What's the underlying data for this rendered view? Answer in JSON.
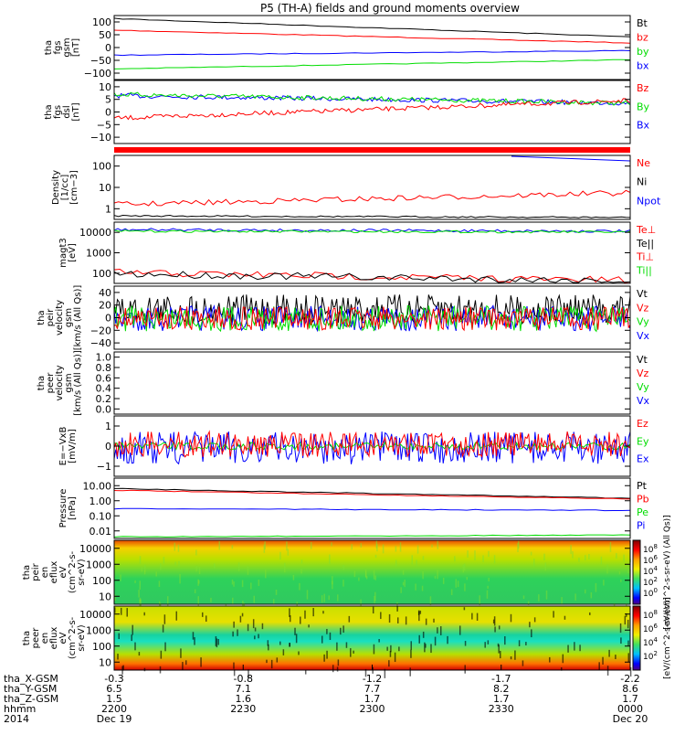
{
  "title": "P5 (TH-A) fields and ground moments overview",
  "colors": {
    "black": "#000000",
    "red": "#ff0000",
    "green": "#00dd00",
    "blue": "#0000ff"
  },
  "chart_data": [
    {
      "type": "line",
      "ylabel": [
        "tha",
        "fgs",
        "gsm",
        "[nT]"
      ],
      "yticks": [
        "100",
        "50",
        "0",
        "−50",
        "−100"
      ],
      "ylim": [
        -100,
        110
      ],
      "legend": [
        {
          "name": "Bt",
          "color": "#000000"
        },
        {
          "name": "bz",
          "color": "#ff0000"
        },
        {
          "name": "by",
          "color": "#00dd00"
        },
        {
          "name": "bx",
          "color": "#0000ff"
        }
      ],
      "series": [
        {
          "name": "Bt",
          "start": 100,
          "end": 40
        },
        {
          "name": "bz",
          "start": 62,
          "end": 20
        },
        {
          "name": "bx",
          "start": -20,
          "end": -5
        },
        {
          "name": "by",
          "start": -65,
          "end": -35
        }
      ]
    },
    {
      "type": "line",
      "ylabel": [
        "tha",
        "fgs",
        "dsl",
        "[nT]"
      ],
      "yticks": [
        "10",
        "5",
        "0",
        "−5",
        "−10"
      ],
      "ylim": [
        -15,
        10
      ],
      "legend": [
        {
          "name": "Bz",
          "color": "#ff0000"
        },
        {
          "name": "By",
          "color": "#00dd00"
        },
        {
          "name": "Bx",
          "color": "#0000ff"
        }
      ],
      "series": [
        {
          "name": "Bz",
          "start": -5,
          "end": 2
        },
        {
          "name": "By",
          "start": 4,
          "end": 1
        },
        {
          "name": "Bx",
          "start": 4,
          "end": 2
        }
      ]
    },
    {
      "type": "line",
      "ylabel": [
        "Density",
        "[1/cc]",
        "[cm−3]"
      ],
      "yticks": [
        "100",
        "10",
        "1"
      ],
      "ylim": [
        0.5,
        200
      ],
      "log": true,
      "legend": [
        {
          "name": "Ne",
          "color": "#ff0000"
        },
        {
          "name": "Ni",
          "color": "#000000"
        },
        {
          "name": "Npot",
          "color": "#0000ff"
        }
      ],
      "series": [
        {
          "name": "Ne",
          "level": 3
        },
        {
          "name": "Ni",
          "level": 0.7
        },
        {
          "name": "Npot",
          "level": 150
        }
      ]
    },
    {
      "type": "line",
      "ylabel": [
        "magt3",
        "[eV]"
      ],
      "yticks": [
        "10000",
        "1000",
        "100"
      ],
      "ylim": [
        30,
        15000
      ],
      "log": true,
      "legend": [
        {
          "name": "Te⊥",
          "color": "#ff0000"
        },
        {
          "name": "Te||",
          "color": "#000000"
        },
        {
          "name": "Ti⊥",
          "color": "#ff0000"
        },
        {
          "name": "Ti||",
          "color": "#00dd00"
        }
      ],
      "series": [
        {
          "name": "Te",
          "level": 7000
        },
        {
          "name": "Ti",
          "level": 100
        }
      ]
    },
    {
      "type": "line",
      "ylabel": [
        "tha",
        "peir",
        "velocity",
        "gsm",
        "[km/s (All Qs)]"
      ],
      "yticks": [
        "40",
        "20",
        "0",
        "−20",
        "−40"
      ],
      "ylim": [
        -40,
        42
      ],
      "legend": [
        {
          "name": "Vt",
          "color": "#000000"
        },
        {
          "name": "Vz",
          "color": "#ff0000"
        },
        {
          "name": "Vy",
          "color": "#00dd00"
        },
        {
          "name": "Vx",
          "color": "#0000ff"
        }
      ]
    },
    {
      "type": "line",
      "ylabel": [
        "tha",
        "peer",
        "velocity",
        "gsm",
        "[km/s (All Qs)]"
      ],
      "yticks": [
        "1.0",
        "0.8",
        "0.6",
        "0.4",
        "0.2",
        "0.0"
      ],
      "ylim": [
        0,
        1
      ],
      "legend": [
        {
          "name": "Vt",
          "color": "#000000"
        },
        {
          "name": "Vz",
          "color": "#ff0000"
        },
        {
          "name": "Vy",
          "color": "#00dd00"
        },
        {
          "name": "Vx",
          "color": "#0000ff"
        }
      ]
    },
    {
      "type": "line",
      "ylabel": [
        "E=−VxB",
        "[mV/m]"
      ],
      "yticks": [
        "1",
        "0",
        "−1"
      ],
      "ylim": [
        -1.6,
        1.6
      ],
      "legend": [
        {
          "name": "Ez",
          "color": "#ff0000"
        },
        {
          "name": "Ey",
          "color": "#00dd00"
        },
        {
          "name": "Ex",
          "color": "#0000ff"
        }
      ]
    },
    {
      "type": "line",
      "ylabel": [
        "Pressure",
        "[nPa]"
      ],
      "yticks": [
        "10.00",
        "1.00",
        "0.10",
        "0.01"
      ],
      "ylim": [
        0.01,
        10
      ],
      "log": true,
      "legend": [
        {
          "name": "Pt",
          "color": "#000000"
        },
        {
          "name": "Pb",
          "color": "#ff0000"
        },
        {
          "name": "Pe",
          "color": "#00dd00"
        },
        {
          "name": "Pi",
          "color": "#0000ff"
        }
      ],
      "series": [
        {
          "name": "Pt",
          "start": 3,
          "end": 1
        },
        {
          "name": "Pb",
          "start": 2.5,
          "end": 0.9
        },
        {
          "name": "Pi",
          "start": 0.3,
          "end": 0.25
        },
        {
          "name": "Pe",
          "start": 0.012,
          "end": 0.015
        }
      ]
    },
    {
      "type": "heatmap",
      "ylabel": [
        "tha",
        "peir",
        "en",
        "eflux",
        "eV",
        "(cm^2-s-",
        "sr-eV)"
      ],
      "yticks": [
        "10000",
        "1000",
        "100",
        "10"
      ],
      "colorbar_label": "[eV/(cm^2-s-sr-eV) (All Qs)]",
      "colorbar_ticks": [
        "10^8",
        "10^6",
        "10^4",
        "10^2",
        "10^0"
      ]
    },
    {
      "type": "heatmap",
      "ylabel": [
        "tha",
        "peer",
        "en",
        "eflux",
        "eV",
        "(cm^2-s-",
        "sr-eV)"
      ],
      "yticks": [
        "10000",
        "1000",
        "100",
        "10"
      ],
      "colorbar_label": "[eV/(cm^2-s-sr-eV)]",
      "colorbar_ticks": [
        "10^8",
        "10^6",
        "10^4",
        "10^2"
      ]
    }
  ],
  "xaxis": {
    "row_labels": [
      "tha_X-GSM",
      "tha_Y-GSM",
      "tha_Z-GSM",
      "hhmm",
      "2014"
    ],
    "columns": [
      {
        "values": [
          "-0.3",
          "6.5",
          "1.5",
          "2200",
          "Dec 19"
        ]
      },
      {
        "values": [
          "-0.8",
          "7.1",
          "1.6",
          "2230",
          ""
        ]
      },
      {
        "values": [
          "-1.2",
          "7.7",
          "1.7",
          "2300",
          ""
        ]
      },
      {
        "values": [
          "-1.7",
          "8.2",
          "1.7",
          "2330",
          ""
        ]
      },
      {
        "values": [
          "-2.2",
          "8.6",
          "1.7",
          "0000",
          "Dec 20"
        ]
      }
    ]
  }
}
